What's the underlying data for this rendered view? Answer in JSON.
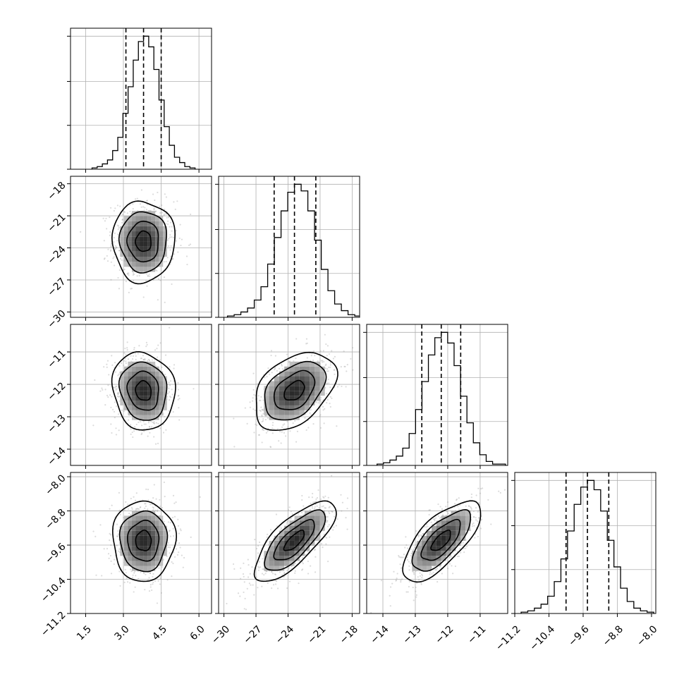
{
  "chart_data": {
    "type": "corner",
    "parameters": [
      {
        "range": [
          0.9,
          6.5
        ],
        "ticks": [
          1.5,
          3.0,
          4.5,
          6.0
        ],
        "tick_labels": [
          "1.5",
          "3.0",
          "4.5",
          "6.0"
        ],
        "quantiles": [
          3.1,
          3.8,
          4.5
        ],
        "mean": 3.8,
        "sd": 0.62
      },
      {
        "range": [
          -30.5,
          -17.3
        ],
        "ticks": [
          -30,
          -27,
          -24,
          -21,
          -18
        ],
        "tick_labels": [
          "−30",
          "−27",
          "−24",
          "−21",
          "−18"
        ],
        "quantiles": [
          -25.3,
          -23.4,
          -21.4
        ],
        "mean": -23.4,
        "sd": 1.9
      },
      {
        "range": [
          -14.5,
          -10.15
        ],
        "ticks": [
          -14,
          -13,
          -12,
          -11
        ],
        "tick_labels": [
          "−14",
          "−13",
          "−12",
          "−11"
        ],
        "quantiles": [
          -12.8,
          -12.2,
          -11.6
        ],
        "mean": -12.2,
        "sd": 0.6
      },
      {
        "range": [
          -11.2,
          -7.9
        ],
        "ticks": [
          -11.2,
          -10.4,
          -9.6,
          -8.8,
          -8.0
        ],
        "tick_labels": [
          "−11.2",
          "−10.4",
          "−9.6",
          "−8.8",
          "−8.0"
        ],
        "quantiles": [
          -10.0,
          -9.5,
          -9.0
        ],
        "mean": -9.5,
        "sd": 0.47
      }
    ],
    "histograms": [
      {
        "bin_counts": [
          1,
          2,
          4,
          7,
          14,
          24,
          42,
          62,
          82,
          96,
          100,
          92,
          75,
          52,
          32,
          18,
          9,
          5,
          2,
          1
        ]
      },
      {
        "bin_counts": [
          1,
          2,
          4,
          7,
          13,
          23,
          40,
          60,
          80,
          94,
          100,
          95,
          80,
          58,
          36,
          20,
          10,
          5,
          2,
          1
        ]
      },
      {
        "bin_counts": [
          1,
          2,
          4,
          7,
          13,
          24,
          42,
          63,
          83,
          96,
          100,
          92,
          75,
          52,
          32,
          17,
          8,
          3,
          1,
          1
        ]
      },
      {
        "bin_counts": [
          1,
          2,
          4,
          7,
          13,
          24,
          41,
          62,
          82,
          95,
          100,
          93,
          77,
          55,
          35,
          19,
          9,
          4,
          2,
          1
        ]
      }
    ],
    "correlations": {
      "1-0": 0.0,
      "2-0": -0.1,
      "3-0": 0.0,
      "2-1": 0.4,
      "3-1": 0.75,
      "3-2": 0.7
    },
    "contour_levels_sigma": [
      0.5,
      1.0,
      1.5,
      2.0
    ],
    "grid": true,
    "title": "",
    "xlabel": "",
    "ylabel": ""
  }
}
